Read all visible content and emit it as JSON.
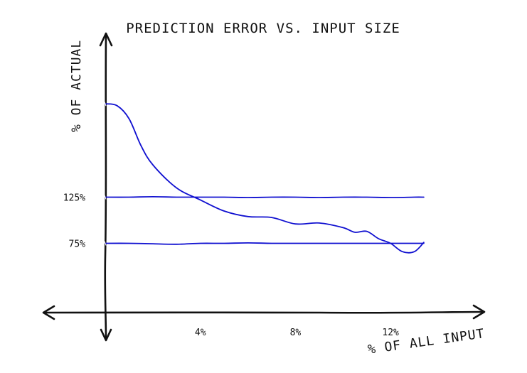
{
  "chart_data": {
    "type": "line",
    "title": "PREDICTION ERROR VS. INPUT SIZE",
    "xlabel": "% OF ALL INPUT",
    "ylabel": "% OF ACTUAL",
    "x_ticks": [
      {
        "value": 4,
        "label": "4%"
      },
      {
        "value": 8,
        "label": "8%"
      },
      {
        "value": 12,
        "label": "12%"
      }
    ],
    "y_ticks": [
      {
        "value": 125,
        "label": "125%"
      },
      {
        "value": 75,
        "label": "75%"
      }
    ],
    "xlim": [
      0,
      14
    ],
    "ylim": [
      0,
      260
    ],
    "grid": false,
    "line_color": "#1010d0",
    "series": [
      {
        "x": [
          0,
          0.5,
          1,
          1.5,
          2,
          3,
          4,
          5,
          6,
          7,
          8,
          9,
          10,
          10.5,
          11,
          11.5,
          12,
          12.5,
          13,
          13.4
        ],
        "values": [
          226,
          224,
          210,
          181,
          160,
          135,
          122,
          110,
          104,
          103,
          96,
          97,
          92,
          87,
          88,
          80,
          75,
          66,
          66,
          76
        ]
      },
      {
        "x": [
          0,
          1,
          2,
          3,
          4,
          5,
          6,
          7,
          8,
          9,
          10,
          11,
          12,
          13,
          13.4
        ],
        "values": [
          125,
          125,
          125.5,
          125,
          125,
          125,
          124.5,
          125,
          125,
          124.5,
          125,
          125,
          124.5,
          125,
          125
        ]
      },
      {
        "x": [
          0,
          1,
          2,
          3,
          4,
          5,
          6,
          7,
          8,
          9,
          10,
          11,
          12,
          13,
          13.4
        ],
        "values": [
          75,
          75,
          74.5,
          74,
          75,
          75,
          75.5,
          75,
          75,
          75,
          75,
          75,
          75,
          75,
          75
        ]
      }
    ]
  }
}
